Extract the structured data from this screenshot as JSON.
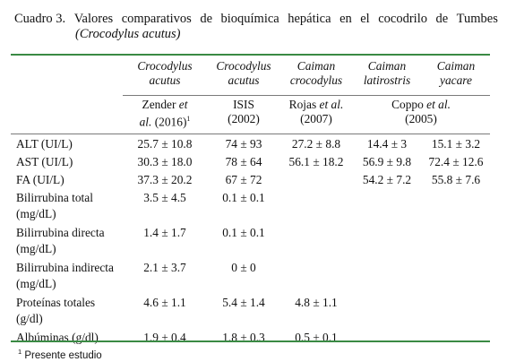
{
  "caption": {
    "label": "Cuadro 3.",
    "words": [
      "Valores",
      "comparativos",
      "de",
      "bioquímica",
      "hepática",
      "en",
      "el",
      "cocodrilo",
      "de",
      "Tumbes"
    ],
    "species": "(Crocodylus acutus)"
  },
  "header": {
    "species": [
      {
        "line1": "Crocodylus",
        "line2": "acutus"
      },
      {
        "line1": "Crocodylus",
        "line2": "acutus"
      },
      {
        "line1": "Caiman",
        "line2": "crocodylus"
      },
      {
        "line1": "Caiman",
        "line2": "latirostris"
      },
      {
        "line1": "Caiman",
        "line2": "yacare"
      }
    ],
    "sources": {
      "zender": {
        "name": "Zender",
        "etal": "et",
        "line2_etal": "al.",
        "year": "(2016)",
        "sup": "1"
      },
      "isis": {
        "name": "ISIS",
        "year": "(2002)"
      },
      "rojas": {
        "name": "Rojas",
        "etal": "et al.",
        "year": "(2007)"
      },
      "coppo": {
        "name": "Coppo",
        "etal": "et al.",
        "year": "(2005)"
      }
    }
  },
  "rows": [
    {
      "label": "ALT (UI/L)",
      "label2": "",
      "values": [
        "25.7 ± 10.8",
        "74 ± 93",
        "27.2 ± 8.8",
        "14.4 ± 3",
        "15.1 ± 3.2"
      ]
    },
    {
      "label": "AST (UI/L)",
      "label2": "",
      "values": [
        "30.3 ± 18.0",
        "78 ± 64",
        "56.1 ± 18.2",
        "56.9 ± 9.8",
        "72.4 ± 12.6"
      ]
    },
    {
      "label": "FA (UI/L)",
      "label2": "",
      "values": [
        "37.3 ± 20.2",
        "67 ± 72",
        "",
        "54.2 ± 7.2",
        "55.8 ± 7.6"
      ]
    },
    {
      "label": "Bilirrubina total",
      "label2": "(mg/dL)",
      "values": [
        "3.5 ± 4.5",
        "0.1 ± 0.1",
        "",
        "",
        ""
      ]
    },
    {
      "label": "Bilirrubina directa",
      "label2": "(mg/dL)",
      "values": [
        "1.4 ± 1.7",
        "0.1 ± 0.1",
        "",
        "",
        ""
      ]
    },
    {
      "label": "Bilirrubina indirecta",
      "label2": "(mg/dL)",
      "values": [
        "2.1 ± 3.7",
        "0 ± 0",
        "",
        "",
        ""
      ]
    },
    {
      "label": "Proteínas totales",
      "label2": "(g/dl)",
      "values": [
        "4.6 ± 1.1",
        "5.4 ± 1.4",
        "4.8 ± 1.1",
        "",
        ""
      ]
    },
    {
      "label": "Albúminas (g/dl)",
      "label2": "",
      "values": [
        "1.9 ± 0.4",
        "1.8 ± 0.3",
        "0.5 ± 0.1",
        "",
        ""
      ]
    }
  ],
  "footnote": {
    "mark": "1",
    "text": "Presente estudio"
  }
}
